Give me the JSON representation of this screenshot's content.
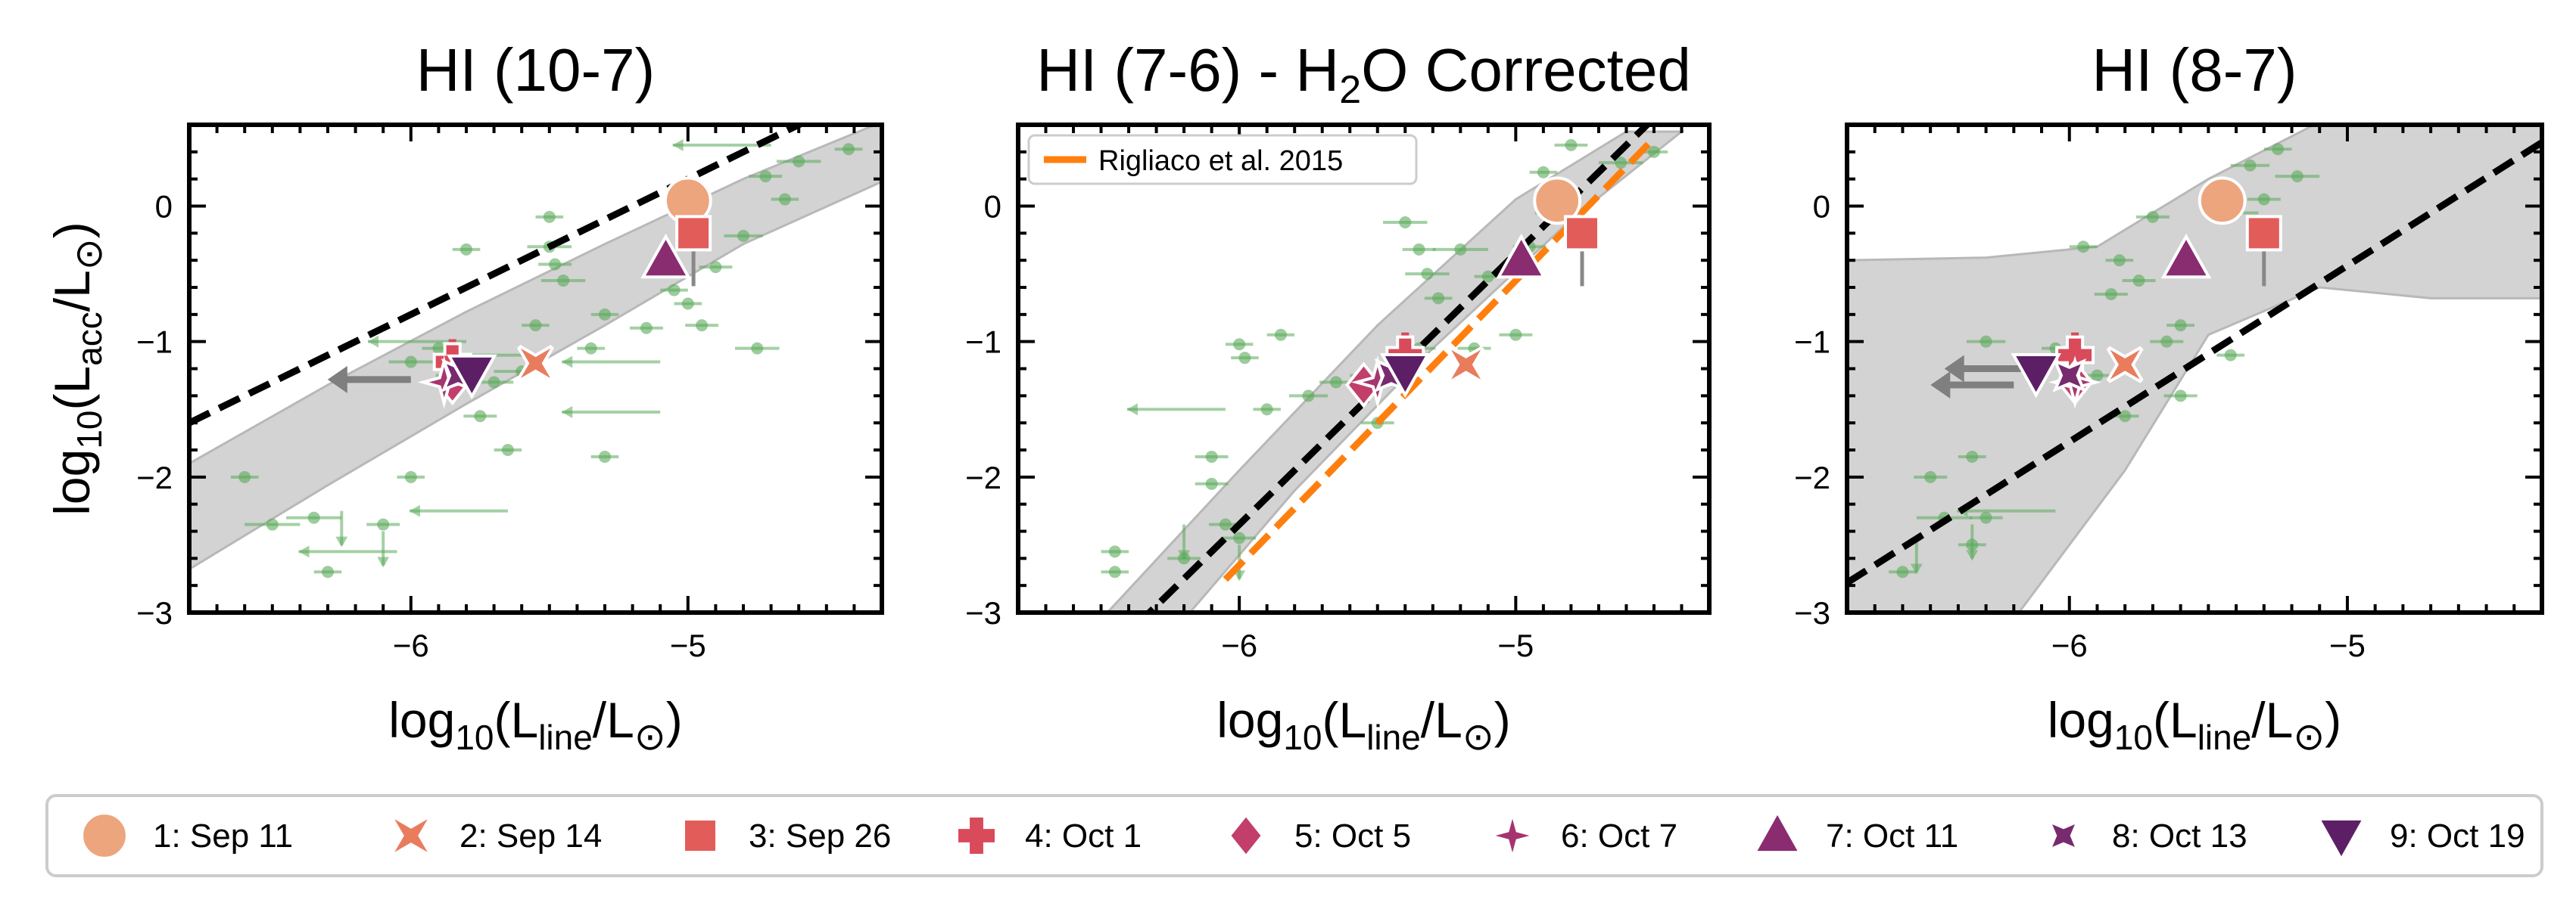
{
  "colors": {
    "literature": "#5aaa5a",
    "upper_limit": "#7f7f7f",
    "fit_line": "#000000",
    "band": "#d3d3d3",
    "rigliaco_line": "#ff7f0e"
  },
  "legend": {
    "rigliaco_label": "Rigliaco et al. 2015",
    "epochs": [
      {
        "label": "1: Sep 11",
        "marker": "circle",
        "color": "#eda57d"
      },
      {
        "label": "2: Sep 14",
        "marker": "x",
        "color": "#e87c5d"
      },
      {
        "label": "3: Sep 26",
        "marker": "square",
        "color": "#e25c5a"
      },
      {
        "label": "4: Oct 1",
        "marker": "plus",
        "color": "#d94a5b"
      },
      {
        "label": "5: Oct 5",
        "marker": "diamond",
        "color": "#c13f6a"
      },
      {
        "label": "6: Oct 7",
        "marker": "star4",
        "color": "#a6356f"
      },
      {
        "label": "7: Oct 11",
        "marker": "triangle-up",
        "color": "#892c70"
      },
      {
        "label": "8: Oct 13",
        "marker": "star4x",
        "color": "#782a6e"
      },
      {
        "label": "9: Oct 19",
        "marker": "triangle-down",
        "color": "#5c1f66"
      }
    ]
  },
  "chart_data": [
    {
      "type": "scatter",
      "title_main": "HI (10-7)",
      "title_sub": "",
      "title_tail": "",
      "xlabel": {
        "pre": "log",
        "sub1": "10",
        "mid": "(L",
        "sub2": "line",
        "post": "/L",
        "sym": "⊙",
        "end": ")"
      },
      "ylabel": {
        "pre": "log",
        "sub1": "10",
        "mid": "(L",
        "sub2": "acc",
        "post": "/L",
        "sym": "⊙",
        "end": ")"
      },
      "xlim": [
        -6.8,
        -4.3
      ],
      "ylim": [
        -3,
        0.6
      ],
      "xticks": [
        -6,
        -5
      ],
      "yticks": [
        -3,
        -2,
        -1,
        0
      ],
      "fit": {
        "slope": 1.0,
        "intercept": 5.2
      },
      "band": {
        "upper": [
          [
            -6.8,
            -1.9
          ],
          [
            -6.3,
            -1.32
          ],
          [
            -5.8,
            -0.78
          ],
          [
            -5.3,
            -0.28
          ],
          [
            -4.8,
            0.2
          ],
          [
            -4.3,
            0.62
          ]
        ],
        "lower": [
          [
            -6.8,
            -2.68
          ],
          [
            -6.3,
            -2.06
          ],
          [
            -5.8,
            -1.46
          ],
          [
            -5.3,
            -0.88
          ],
          [
            -4.8,
            -0.28
          ],
          [
            -4.3,
            0.18
          ]
        ]
      },
      "points": [
        {
          "x": -4.42,
          "y": 0.42,
          "xe": 0.05,
          "ye": 0
        },
        {
          "x": -4.6,
          "y": 0.33,
          "xe": 0.08,
          "ye": 0
        },
        {
          "x": -4.72,
          "y": 0.22,
          "xe": 0.06,
          "ye": 0
        },
        {
          "x": -4.65,
          "y": 0.05,
          "xe": 0.05,
          "ye": 0
        },
        {
          "x": -4.8,
          "y": -0.22,
          "xe": 0.07,
          "ye": 0
        },
        {
          "x": -4.9,
          "y": -0.45,
          "xe": 0.06,
          "ye": 0
        },
        {
          "x": -5.0,
          "y": -0.72,
          "xe": 0.05,
          "ye": 0
        },
        {
          "x": -4.95,
          "y": -0.88,
          "xe": 0.06,
          "ye": 0
        },
        {
          "x": -4.75,
          "y": -1.05,
          "xe": 0.08,
          "ye": 0
        },
        {
          "x": -5.15,
          "y": -0.9,
          "xe": 0.06,
          "ye": 0
        },
        {
          "x": -5.35,
          "y": -1.05,
          "xe": 0.05,
          "ye": 0
        },
        {
          "x": -5.5,
          "y": -0.3,
          "xe": 0.08,
          "ye": 0
        },
        {
          "x": -5.45,
          "y": -0.55,
          "xe": 0.08,
          "ye": 0
        },
        {
          "x": -5.5,
          "y": -0.08,
          "xe": 0.05,
          "ye": 0
        },
        {
          "x": -5.48,
          "y": -0.43,
          "xe": 0.06,
          "ye": 0
        },
        {
          "x": -5.55,
          "y": -0.88,
          "xe": 0.05,
          "ye": 0
        },
        {
          "x": -5.6,
          "y": -1.22,
          "xe": 0.1,
          "ye": 0
        },
        {
          "x": -5.7,
          "y": -1.3,
          "xe": 0.07,
          "ye": 0
        },
        {
          "x": -5.85,
          "y": -1.25,
          "xe": 0.06,
          "ye": 0
        },
        {
          "x": -5.8,
          "y": -0.32,
          "xe": 0.05,
          "ye": 0
        },
        {
          "x": -5.9,
          "y": -1.05,
          "xe": 0.06,
          "ye": 0
        },
        {
          "x": -6.0,
          "y": -1.15,
          "xe": 0.08,
          "ye": 0
        },
        {
          "x": -5.75,
          "y": -1.55,
          "xe": 0.06,
          "ye": 0
        },
        {
          "x": -6.0,
          "y": -2.0,
          "xe": 0.05,
          "ye": 0
        },
        {
          "x": -6.1,
          "y": -2.35,
          "xe": 0.06,
          "ye": 0
        },
        {
          "x": -6.35,
          "y": -2.3,
          "xe": 0.1,
          "ye": 0
        },
        {
          "x": -6.3,
          "y": -2.7,
          "xe": 0.05,
          "ye": 0
        },
        {
          "x": -6.6,
          "y": -2.0,
          "xe": 0.05,
          "ye": 0
        },
        {
          "x": -6.5,
          "y": -2.35,
          "xe": 0.1,
          "ye": 0
        },
        {
          "x": -5.3,
          "y": -1.85,
          "xe": 0.05,
          "ye": 0
        },
        {
          "x": -5.65,
          "y": -1.8,
          "xe": 0.05,
          "ye": 0
        },
        {
          "x": -5.3,
          "y": -0.8,
          "xe": 0.05,
          "ye": 0
        },
        {
          "x": -5.05,
          "y": -0.62,
          "xe": 0.05,
          "ye": 0
        }
      ],
      "limits": [
        {
          "x": -4.7,
          "y": 0.45,
          "dir": "left"
        },
        {
          "x": -5.5,
          "y": -1.1,
          "dir": "left"
        },
        {
          "x": -5.1,
          "y": -1.15,
          "dir": "left"
        },
        {
          "x": -5.1,
          "y": -1.52,
          "dir": "left"
        },
        {
          "x": -5.8,
          "y": -1.0,
          "dir": "left"
        },
        {
          "x": -5.65,
          "y": -2.25,
          "dir": "left"
        },
        {
          "x": -6.05,
          "y": -2.55,
          "dir": "left"
        },
        {
          "x": -6.1,
          "y": -2.4,
          "dir": "down"
        },
        {
          "x": -6.25,
          "y": -2.25,
          "dir": "down"
        }
      ],
      "grey_limits": [
        {
          "x": -6.0,
          "y": -1.28
        }
      ],
      "epochs": [
        {
          "x": -5.0,
          "y": 0.04
        },
        {
          "x": -5.55,
          "y": -1.16
        },
        {
          "x": -4.98,
          "y": -0.2,
          "ye": 0.05
        },
        {
          "x": -5.85,
          "y": -1.15,
          "down": true
        },
        {
          "x": -5.85,
          "y": -1.3
        },
        {
          "x": -5.88,
          "y": -1.3
        },
        {
          "x": -5.08,
          "y": -0.4
        },
        {
          "x": -5.83,
          "y": -1.25
        },
        {
          "x": -5.78,
          "y": -1.23
        }
      ],
      "show_legend": false
    },
    {
      "type": "scatter",
      "title_main": "HI (7-6) - H",
      "title_sub": "2",
      "title_tail": "O Corrected",
      "xlabel": {
        "pre": "log",
        "sub1": "10",
        "mid": "(L",
        "sub2": "line",
        "post": "/L",
        "sym": "⊙",
        "end": ")"
      },
      "ylabel": null,
      "xlim": [
        -6.8,
        -4.3
      ],
      "ylim": [
        -3,
        0.6
      ],
      "xticks": [
        -6,
        -5
      ],
      "yticks": [
        -3,
        -2,
        -1,
        0
      ],
      "fit": {
        "slope": 2.0,
        "intercept": 9.65
      },
      "rigliaco": {
        "slope": 2.1,
        "intercept": 9.95,
        "xrange": [
          -6.05,
          -4.5
        ]
      },
      "band": {
        "upper": [
          [
            -6.5,
            -3.05
          ],
          [
            -6.0,
            -1.95
          ],
          [
            -5.5,
            -0.88
          ],
          [
            -5.0,
            0.05
          ],
          [
            -4.6,
            0.55
          ]
        ],
        "lower": [
          [
            -6.2,
            -3.05
          ],
          [
            -5.8,
            -2.1
          ],
          [
            -5.3,
            -1.05
          ],
          [
            -4.8,
            -0.1
          ],
          [
            -4.4,
            0.55
          ]
        ]
      },
      "points": [
        {
          "x": -4.5,
          "y": 0.4,
          "xe": 0.05,
          "ye": 0
        },
        {
          "x": -4.62,
          "y": 0.32,
          "xe": 0.08,
          "ye": 0
        },
        {
          "x": -4.8,
          "y": 0.45,
          "xe": 0.06,
          "ye": 0
        },
        {
          "x": -4.9,
          "y": 0.25,
          "xe": 0.05,
          "ye": 0
        },
        {
          "x": -4.85,
          "y": -0.05,
          "xe": 0.08,
          "ye": 0
        },
        {
          "x": -4.95,
          "y": -0.3,
          "xe": 0.06,
          "ye": 0
        },
        {
          "x": -5.1,
          "y": -0.52,
          "xe": 0.05,
          "ye": 0
        },
        {
          "x": -5.2,
          "y": -0.32,
          "xe": 0.1,
          "ye": 0
        },
        {
          "x": -5.32,
          "y": -0.5,
          "xe": 0.08,
          "ye": 0
        },
        {
          "x": -5.35,
          "y": -0.32,
          "xe": 0.06,
          "ye": 0
        },
        {
          "x": -5.4,
          "y": -0.12,
          "xe": 0.08,
          "ye": 0
        },
        {
          "x": -5.28,
          "y": -0.68,
          "xe": 0.05,
          "ye": 0
        },
        {
          "x": -5.0,
          "y": -0.95,
          "xe": 0.06,
          "ye": 0
        },
        {
          "x": -5.15,
          "y": -1.05,
          "xe": 0.06,
          "ye": 0
        },
        {
          "x": -5.35,
          "y": -1.05,
          "xe": 0.06,
          "ye": 0
        },
        {
          "x": -5.55,
          "y": -1.25,
          "xe": 0.05,
          "ye": 0
        },
        {
          "x": -5.65,
          "y": -1.3,
          "xe": 0.06,
          "ye": 0
        },
        {
          "x": -5.5,
          "y": -1.6,
          "xe": 0.06,
          "ye": 0
        },
        {
          "x": -5.75,
          "y": -1.4,
          "xe": 0.07,
          "ye": 0
        },
        {
          "x": -5.9,
          "y": -1.5,
          "xe": 0.05,
          "ye": 0
        },
        {
          "x": -6.0,
          "y": -1.02,
          "xe": 0.05,
          "ye": 0
        },
        {
          "x": -5.98,
          "y": -1.12,
          "xe": 0.05,
          "ye": 0
        },
        {
          "x": -6.1,
          "y": -1.85,
          "xe": 0.06,
          "ye": 0
        },
        {
          "x": -6.1,
          "y": -2.05,
          "xe": 0.06,
          "ye": 0
        },
        {
          "x": -6.05,
          "y": -2.35,
          "xe": 0.06,
          "ye": 0
        },
        {
          "x": -6.0,
          "y": -2.45,
          "xe": 0.06,
          "ye": 0
        },
        {
          "x": -6.45,
          "y": -2.55,
          "xe": 0.05,
          "ye": 0
        },
        {
          "x": -6.45,
          "y": -2.7,
          "xe": 0.05,
          "ye": 0
        },
        {
          "x": -6.2,
          "y": -2.6,
          "xe": 0.06,
          "ye": 0
        },
        {
          "x": -5.85,
          "y": -0.95,
          "xe": 0.05,
          "ye": 0
        }
      ],
      "limits": [
        {
          "x": -6.05,
          "y": -1.5,
          "dir": "left"
        },
        {
          "x": -6.2,
          "y": -2.35,
          "dir": "down"
        },
        {
          "x": -6.0,
          "y": -2.5,
          "dir": "down"
        }
      ],
      "grey_limits": [],
      "epochs": [
        {
          "x": -4.85,
          "y": 0.04
        },
        {
          "x": -5.18,
          "y": -1.17
        },
        {
          "x": -4.76,
          "y": -0.2,
          "ye": 0.1
        },
        {
          "x": -5.4,
          "y": -1.1,
          "down": true
        },
        {
          "x": -5.55,
          "y": -1.32
        },
        {
          "x": -5.5,
          "y": -1.3
        },
        {
          "x": -4.98,
          "y": -0.4
        },
        {
          "x": -5.45,
          "y": -1.25
        },
        {
          "x": -5.4,
          "y": -1.22
        }
      ],
      "show_legend": true
    },
    {
      "type": "scatter",
      "title_main": "HI (8-7)",
      "title_sub": "",
      "title_tail": "",
      "xlabel": {
        "pre": "log",
        "sub1": "10",
        "mid": "(L",
        "sub2": "line",
        "post": "/L",
        "sym": "⊙",
        "end": ")"
      },
      "ylabel": null,
      "xlim": [
        -6.8,
        -4.3
      ],
      "ylim": [
        -3,
        0.6
      ],
      "xticks": [
        -6,
        -5
      ],
      "yticks": [
        -3,
        -2,
        -1,
        0
      ],
      "fit": {
        "slope": 1.3,
        "intercept": 6.06
      },
      "band": {
        "upper": [
          [
            -6.8,
            -0.4
          ],
          [
            -6.3,
            -0.38
          ],
          [
            -5.9,
            -0.3
          ],
          [
            -5.5,
            0.2
          ],
          [
            -5.1,
            0.62
          ]
        ],
        "lower": [
          [
            -6.2,
            -3.05
          ],
          [
            -5.8,
            -1.95
          ],
          [
            -5.5,
            -0.95
          ],
          [
            -5.1,
            -0.6
          ],
          [
            -4.7,
            -0.68
          ],
          [
            -4.3,
            -0.68
          ]
        ],
        "upper_tail": [
          [
            -5.1,
            0.62
          ],
          [
            -4.3,
            0.62
          ]
        ],
        "left_low": [
          [
            -6.8,
            -3.05
          ]
        ],
        "right_top": [
          [
            -4.3,
            -0.68
          ]
        ]
      },
      "points": [
        {
          "x": -5.25,
          "y": 0.42,
          "xe": 0.05,
          "ye": 0
        },
        {
          "x": -5.35,
          "y": 0.3,
          "xe": 0.07,
          "ye": 0
        },
        {
          "x": -5.18,
          "y": 0.22,
          "xe": 0.08,
          "ye": 0
        },
        {
          "x": -5.3,
          "y": 0.05,
          "xe": 0.06,
          "ye": 0
        },
        {
          "x": -5.4,
          "y": -0.05,
          "xe": 0.08,
          "ye": 0
        },
        {
          "x": -5.7,
          "y": -0.08,
          "xe": 0.06,
          "ye": 0
        },
        {
          "x": -5.82,
          "y": -0.4,
          "xe": 0.05,
          "ye": 0
        },
        {
          "x": -5.75,
          "y": -0.55,
          "xe": 0.06,
          "ye": 0
        },
        {
          "x": -5.85,
          "y": -0.65,
          "xe": 0.06,
          "ye": 0
        },
        {
          "x": -5.6,
          "y": -0.88,
          "xe": 0.05,
          "ye": 0
        },
        {
          "x": -5.42,
          "y": -1.1,
          "xe": 0.05,
          "ye": 0
        },
        {
          "x": -5.65,
          "y": -1.0,
          "xe": 0.06,
          "ye": 0
        },
        {
          "x": -6.3,
          "y": -1.0,
          "xe": 0.07,
          "ye": 0
        },
        {
          "x": -6.05,
          "y": -1.05,
          "xe": 0.05,
          "ye": 0
        },
        {
          "x": -5.9,
          "y": -1.25,
          "xe": 0.06,
          "ye": 0
        },
        {
          "x": -5.6,
          "y": -1.4,
          "xe": 0.06,
          "ye": 0
        },
        {
          "x": -5.8,
          "y": -1.55,
          "xe": 0.05,
          "ye": 0
        },
        {
          "x": -6.35,
          "y": -1.85,
          "xe": 0.05,
          "ye": 0
        },
        {
          "x": -6.5,
          "y": -2.0,
          "xe": 0.06,
          "ye": 0
        },
        {
          "x": -6.45,
          "y": -2.3,
          "xe": 0.1,
          "ye": 0
        },
        {
          "x": -6.35,
          "y": -2.5,
          "xe": 0.05,
          "ye": 0
        },
        {
          "x": -6.6,
          "y": -2.7,
          "xe": 0.05,
          "ye": 0
        },
        {
          "x": -6.3,
          "y": -2.3,
          "xe": 0.06,
          "ye": 0
        },
        {
          "x": -5.95,
          "y": -0.3,
          "xe": 0.05,
          "ye": 0
        }
      ],
      "limits": [
        {
          "x": -6.05,
          "y": -2.25,
          "dir": "left"
        },
        {
          "x": -6.35,
          "y": -2.35,
          "dir": "down"
        },
        {
          "x": -6.55,
          "y": -2.45,
          "dir": "down"
        }
      ],
      "grey_limits": [
        {
          "x": -6.15,
          "y": -1.2
        },
        {
          "x": -6.2,
          "y": -1.32
        }
      ],
      "epochs": [
        {
          "x": -5.45,
          "y": 0.04
        },
        {
          "x": -5.8,
          "y": -1.17
        },
        {
          "x": -5.3,
          "y": -0.2,
          "ye": 0.1
        },
        {
          "x": -5.98,
          "y": -1.1,
          "down": true
        },
        {
          "x": -5.98,
          "y": -1.3
        },
        {
          "x": -5.98,
          "y": -1.3
        },
        {
          "x": -5.58,
          "y": -0.4
        },
        {
          "x": -6.0,
          "y": -1.25
        },
        {
          "x": -6.12,
          "y": -1.22
        }
      ],
      "show_legend": false
    }
  ]
}
